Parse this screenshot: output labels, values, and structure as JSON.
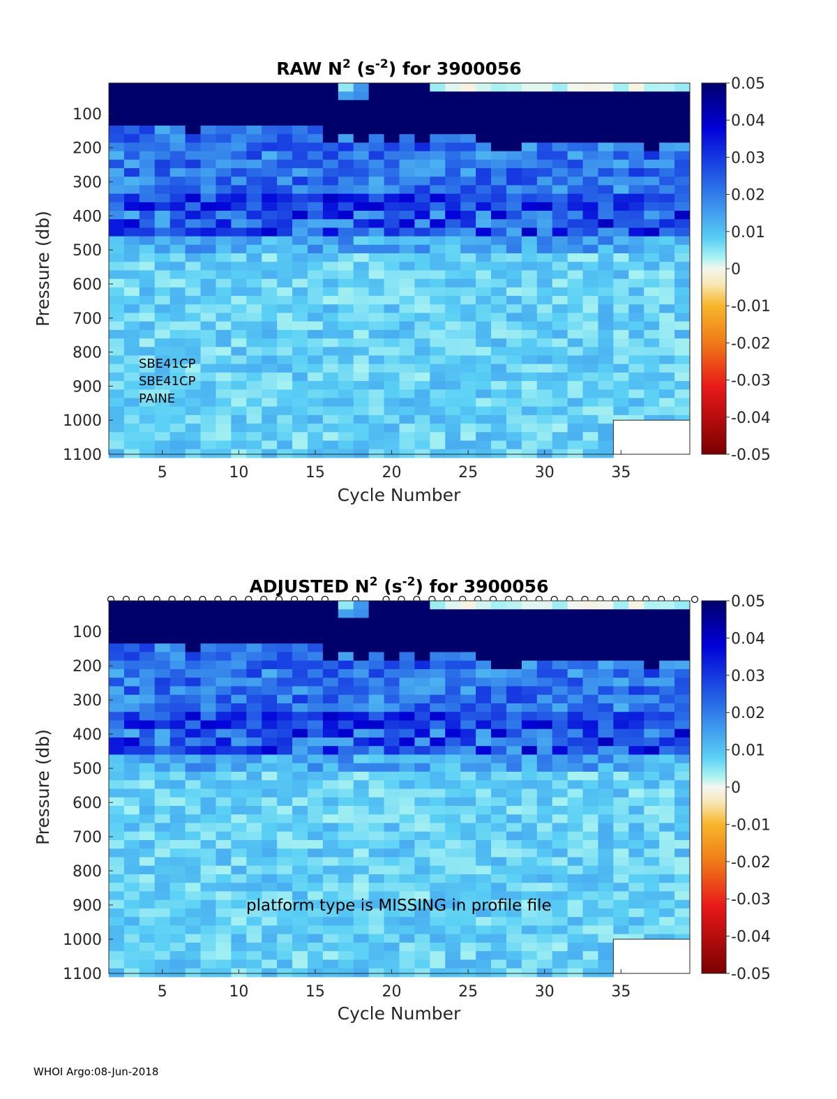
{
  "footer": "WHOI Argo:08-Jun-2018",
  "colorbar": {
    "ticks": [
      "0.05",
      "0.04",
      "0.03",
      "0.02",
      "0.01",
      "0",
      "-0.01",
      "-0.02",
      "-0.03",
      "-0.04",
      "-0.05"
    ],
    "range": [
      -0.05,
      0.05
    ]
  },
  "chart_data": [
    {
      "type": "heatmap",
      "title_main": "RAW N",
      "title_sup1": "2",
      "title_mid": " (s",
      "title_sup2": "-2",
      "title_end": ") for 3900056",
      "xlabel": "Cycle Number",
      "ylabel": "Pressure (db)",
      "xticks": [
        "5",
        "10",
        "15",
        "20",
        "25",
        "30",
        "35"
      ],
      "yticks": [
        "100",
        "200",
        "300",
        "400",
        "500",
        "600",
        "700",
        "800",
        "900",
        "1000",
        "1100"
      ],
      "xlim": [
        1.5,
        39.5
      ],
      "ylim": [
        1100,
        10
      ],
      "annotations": [
        "SBE41CP",
        "SBE41CP",
        "PAINE"
      ],
      "cycle_markers": []
    },
    {
      "type": "heatmap",
      "title_main": "ADJUSTED N",
      "title_sup1": "2",
      "title_mid": " (s",
      "title_sup2": "-2",
      "title_end": ") for 3900056",
      "xlabel": "Cycle Number",
      "ylabel": "Pressure (db)",
      "xticks": [
        "5",
        "10",
        "15",
        "20",
        "25",
        "30",
        "35"
      ],
      "yticks": [
        "100",
        "200",
        "300",
        "400",
        "500",
        "600",
        "700",
        "800",
        "900",
        "1000",
        "1100"
      ],
      "xlim": [
        1.5,
        39.5
      ],
      "ylim": [
        1100,
        10
      ],
      "annotations": [
        "platform type is MISSING in profile file"
      ],
      "cycle_markers": [
        2,
        3,
        4,
        5,
        6,
        7,
        8,
        9,
        10,
        11,
        12,
        13,
        14,
        15,
        16,
        18,
        20,
        21,
        22,
        23,
        24,
        25,
        26,
        27,
        28,
        29,
        30,
        31,
        32,
        33,
        34,
        35,
        36,
        37,
        38,
        39,
        40
      ]
    }
  ]
}
